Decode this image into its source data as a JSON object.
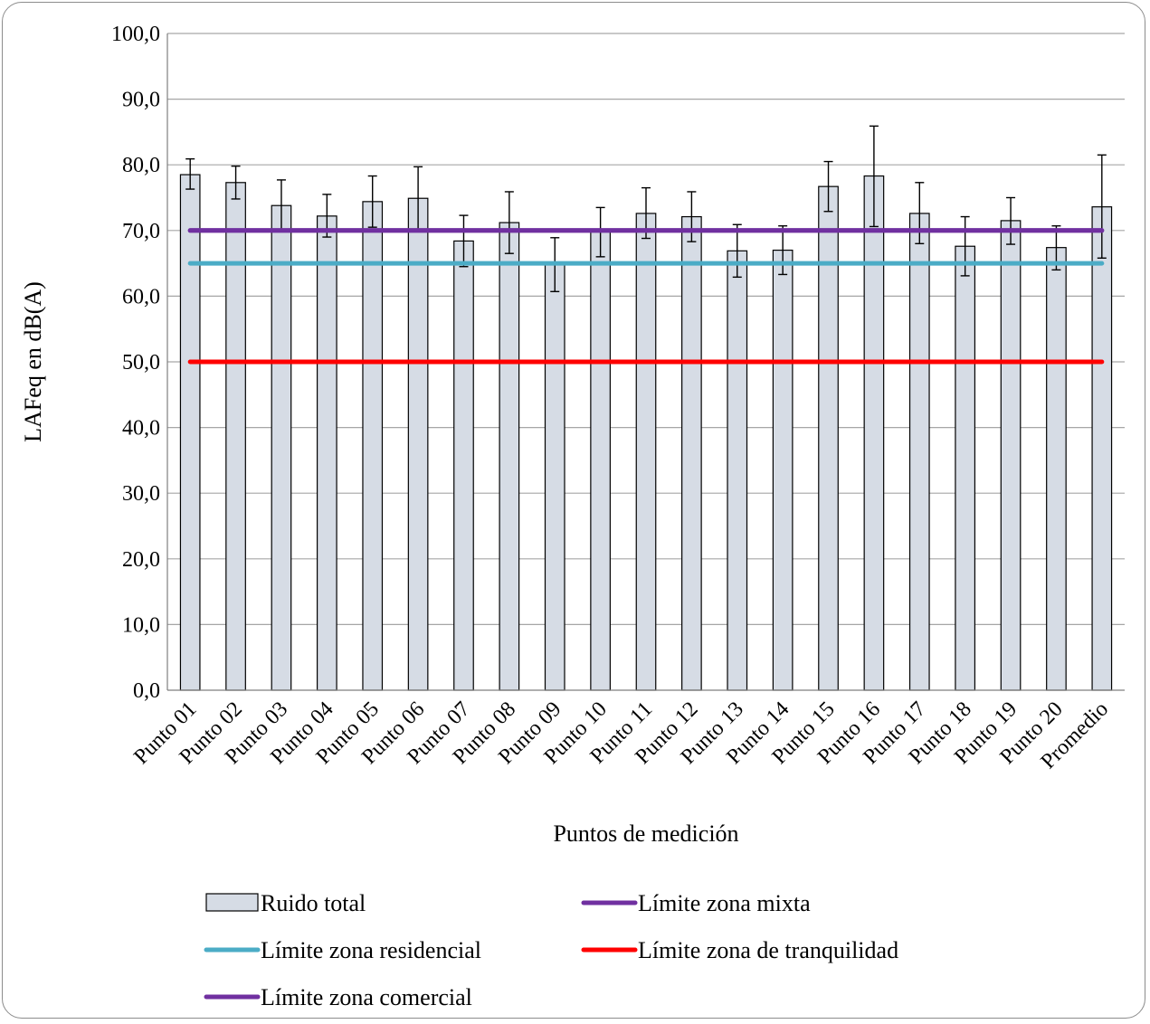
{
  "chart_data": {
    "type": "bar",
    "xlabel": "Puntos de medición",
    "ylabel": "LAFeq en dB(A)",
    "ylim": [
      0,
      100
    ],
    "yticks": [
      "0,0",
      "10,0",
      "20,0",
      "30,0",
      "40,0",
      "50,0",
      "60,0",
      "70,0",
      "80,0",
      "90,0",
      "100,0"
    ],
    "grid": true,
    "legend_position": "bottom",
    "categories": [
      "Punto 01",
      "Punto 02",
      "Punto 03",
      "Punto 04",
      "Punto 05",
      "Punto 06",
      "Punto 07",
      "Punto 08",
      "Punto 09",
      "Punto 10",
      "Punto 11",
      "Punto 12",
      "Punto 13",
      "Punto 14",
      "Punto 15",
      "Punto 16",
      "Punto 17",
      "Punto 18",
      "Punto 19",
      "Punto 20",
      "Promedio"
    ],
    "series": [
      {
        "name": "Ruido total",
        "kind": "bar",
        "color": "#d6dce5",
        "values": [
          78.5,
          77.3,
          73.8,
          72.2,
          74.4,
          74.9,
          68.4,
          71.2,
          64.8,
          69.8,
          72.6,
          72.1,
          66.9,
          67.0,
          76.7,
          78.3,
          72.6,
          67.6,
          71.5,
          67.4,
          73.6
        ],
        "error_low": [
          76.3,
          74.8,
          70.0,
          69.0,
          70.5,
          70.0,
          64.5,
          66.5,
          60.7,
          66.0,
          68.8,
          68.3,
          62.9,
          63.3,
          72.9,
          70.6,
          68.0,
          63.1,
          67.9,
          64.0,
          65.8
        ],
        "error_high": [
          80.9,
          79.8,
          77.7,
          75.5,
          78.3,
          79.7,
          72.3,
          75.9,
          68.9,
          73.5,
          76.5,
          75.9,
          70.9,
          70.7,
          80.5,
          85.9,
          77.3,
          72.1,
          75.0,
          70.7,
          81.5
        ]
      },
      {
        "name": "Límite zona mixta",
        "kind": "line",
        "color": "#7030a0",
        "value": 70
      },
      {
        "name": "Límite zona residencial",
        "kind": "line",
        "color": "#4bacc6",
        "value": 65
      },
      {
        "name": "Límite zona de tranquilidad",
        "kind": "line",
        "color": "#ff0000",
        "value": 50
      },
      {
        "name": "Límite zona comercial",
        "kind": "line",
        "color": "#7030a0",
        "value": 70
      }
    ]
  }
}
